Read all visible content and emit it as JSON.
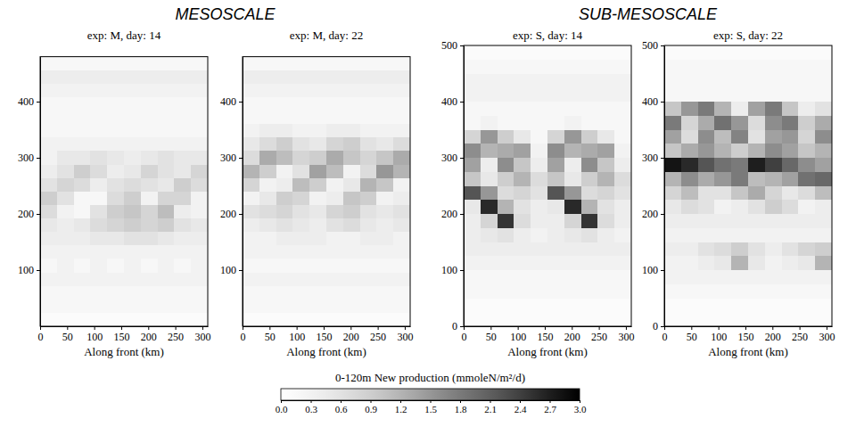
{
  "group_titles": [
    "MESOSCALE",
    "SUB-MESOSCALE"
  ],
  "colorbar": {
    "title": "0-120m New production (mmoleN/m²/d)",
    "range": [
      0,
      3
    ],
    "ticks": [
      {
        "value": 0,
        "label": "0.0"
      },
      0.3,
      0.6,
      0.9,
      1.2,
      1.5,
      1.8,
      2.1,
      2.4,
      2.7,
      {
        "value": 3,
        "label": "3.0"
      }
    ]
  },
  "chart_data": [
    {
      "type": "heatmap",
      "title": "exp: M, day: 14",
      "x_label": "Along front (km)",
      "xlim": [
        0,
        310
      ],
      "xticks": [
        0,
        50,
        100,
        150,
        200,
        250,
        300
      ],
      "ylim": [
        0,
        480
      ],
      "yticks": [
        100,
        200,
        300,
        400
      ],
      "x_bins": [
        0,
        31,
        62,
        93,
        124,
        155,
        186,
        217,
        248,
        279,
        310
      ],
      "y_bins": [
        0,
        24,
        48,
        72,
        96,
        120,
        144,
        168,
        192,
        216,
        240,
        264,
        288,
        312,
        336,
        360,
        384,
        408,
        432,
        456,
        480
      ],
      "cells": [
        [
          0.1,
          0.1,
          0.1,
          0.1,
          0.1,
          0.1,
          0.1,
          0.1,
          0.1,
          0.1
        ],
        [
          0.2,
          0.2,
          0.2,
          0.2,
          0.2,
          0.2,
          0.2,
          0.2,
          0.2,
          0.2
        ],
        [
          0.2,
          0.2,
          0.2,
          0.2,
          0.2,
          0.2,
          0.2,
          0.2,
          0.2,
          0.2
        ],
        [
          0.3,
          0.3,
          0.3,
          0.3,
          0.3,
          0.3,
          0.3,
          0.3,
          0.3,
          0.3
        ],
        [
          0.2,
          0.3,
          0.2,
          0.3,
          0.2,
          0.3,
          0.2,
          0.3,
          0.2,
          0.3
        ],
        [
          0.3,
          0.3,
          0.3,
          0.3,
          0.3,
          0.3,
          0.3,
          0.3,
          0.3,
          0.3
        ],
        [
          0.4,
          0.4,
          0.4,
          0.5,
          0.5,
          0.6,
          0.6,
          0.5,
          0.4,
          0.4
        ],
        [
          0.5,
          0.4,
          0.5,
          0.7,
          0.8,
          0.9,
          0.8,
          0.9,
          0.6,
          0.5
        ],
        [
          0.7,
          0.3,
          0.2,
          0.6,
          0.9,
          1.0,
          0.8,
          1.1,
          0.4,
          0.3
        ],
        [
          0.9,
          0.6,
          0.2,
          0.2,
          0.7,
          0.9,
          0.3,
          0.8,
          0.8,
          0.3
        ],
        [
          0.6,
          0.8,
          0.7,
          0.4,
          0.6,
          0.7,
          0.6,
          0.5,
          0.9,
          0.7
        ],
        [
          0.4,
          0.6,
          0.9,
          0.7,
          0.4,
          0.5,
          0.8,
          0.6,
          0.5,
          0.8
        ],
        [
          0.3,
          0.5,
          0.5,
          0.6,
          0.5,
          0.4,
          0.5,
          0.6,
          0.5,
          0.5
        ],
        [
          0.3,
          0.3,
          0.3,
          0.3,
          0.3,
          0.3,
          0.3,
          0.3,
          0.3,
          0.3
        ],
        [
          0.2,
          0.2,
          0.2,
          0.2,
          0.2,
          0.2,
          0.2,
          0.2,
          0.2,
          0.2
        ],
        [
          0.2,
          0.2,
          0.2,
          0.2,
          0.2,
          0.2,
          0.2,
          0.2,
          0.2,
          0.2
        ],
        [
          0.2,
          0.2,
          0.2,
          0.2,
          0.2,
          0.2,
          0.2,
          0.2,
          0.2,
          0.2
        ],
        [
          0.3,
          0.3,
          0.3,
          0.3,
          0.3,
          0.3,
          0.3,
          0.3,
          0.3,
          0.3
        ],
        [
          0.4,
          0.4,
          0.4,
          0.4,
          0.4,
          0.4,
          0.4,
          0.4,
          0.4,
          0.4
        ],
        [
          0.2,
          0.2,
          0.2,
          0.2,
          0.2,
          0.2,
          0.2,
          0.2,
          0.2,
          0.2
        ]
      ]
    },
    {
      "type": "heatmap",
      "title": "exp: M, day: 22",
      "x_label": "Along front (km)",
      "xlim": [
        0,
        310
      ],
      "xticks": [
        0,
        50,
        100,
        150,
        200,
        250,
        300
      ],
      "ylim": [
        0,
        480
      ],
      "yticks": [
        100,
        200,
        300,
        400
      ],
      "x_bins": [
        0,
        31,
        62,
        93,
        124,
        155,
        186,
        217,
        248,
        279,
        310
      ],
      "y_bins": [
        0,
        24,
        48,
        72,
        96,
        120,
        144,
        168,
        192,
        216,
        240,
        264,
        288,
        312,
        336,
        360,
        384,
        408,
        432,
        456,
        480
      ],
      "cells": [
        [
          0.1,
          0.1,
          0.1,
          0.1,
          0.1,
          0.1,
          0.1,
          0.1,
          0.1,
          0.1
        ],
        [
          0.2,
          0.2,
          0.2,
          0.2,
          0.2,
          0.2,
          0.2,
          0.2,
          0.2,
          0.2
        ],
        [
          0.2,
          0.2,
          0.2,
          0.2,
          0.2,
          0.2,
          0.2,
          0.2,
          0.2,
          0.2
        ],
        [
          0.3,
          0.3,
          0.3,
          0.3,
          0.3,
          0.3,
          0.3,
          0.3,
          0.3,
          0.3
        ],
        [
          0.2,
          0.2,
          0.2,
          0.2,
          0.2,
          0.2,
          0.2,
          0.2,
          0.2,
          0.2
        ],
        [
          0.3,
          0.3,
          0.3,
          0.3,
          0.3,
          0.3,
          0.3,
          0.3,
          0.3,
          0.3
        ],
        [
          0.3,
          0.3,
          0.4,
          0.4,
          0.4,
          0.3,
          0.3,
          0.4,
          0.4,
          0.3
        ],
        [
          0.4,
          0.5,
          0.6,
          0.5,
          0.4,
          0.6,
          0.7,
          0.5,
          0.4,
          0.5
        ],
        [
          0.6,
          0.7,
          0.8,
          0.6,
          0.5,
          0.8,
          0.9,
          0.6,
          0.5,
          0.6
        ],
        [
          0.3,
          0.5,
          0.9,
          0.8,
          0.3,
          0.4,
          1.0,
          0.9,
          0.3,
          0.4
        ],
        [
          0.8,
          0.3,
          0.4,
          1.1,
          0.9,
          0.3,
          0.5,
          1.2,
          1.0,
          0.3
        ],
        [
          1.2,
          0.9,
          0.3,
          0.6,
          1.4,
          1.1,
          0.3,
          0.7,
          1.5,
          1.2
        ],
        [
          0.7,
          1.3,
          1.1,
          0.8,
          0.9,
          1.3,
          1.0,
          0.8,
          1.0,
          1.3
        ],
        [
          0.5,
          0.7,
          0.9,
          0.6,
          0.5,
          0.8,
          0.9,
          0.6,
          0.5,
          0.7
        ],
        [
          0.3,
          0.4,
          0.4,
          0.3,
          0.3,
          0.4,
          0.4,
          0.3,
          0.3,
          0.3
        ],
        [
          0.2,
          0.2,
          0.2,
          0.2,
          0.2,
          0.2,
          0.2,
          0.2,
          0.2,
          0.2
        ],
        [
          0.2,
          0.2,
          0.2,
          0.2,
          0.2,
          0.2,
          0.2,
          0.2,
          0.2,
          0.2
        ],
        [
          0.3,
          0.3,
          0.3,
          0.3,
          0.3,
          0.3,
          0.3,
          0.3,
          0.3,
          0.3
        ],
        [
          0.4,
          0.4,
          0.4,
          0.4,
          0.4,
          0.4,
          0.4,
          0.4,
          0.4,
          0.4
        ],
        [
          0.2,
          0.2,
          0.2,
          0.2,
          0.2,
          0.2,
          0.2,
          0.2,
          0.2,
          0.2
        ]
      ]
    },
    {
      "type": "heatmap",
      "title": "exp: S, day: 14",
      "x_label": "Along front (km)",
      "xlim": [
        0,
        310
      ],
      "xticks": [
        0,
        50,
        100,
        150,
        200,
        250,
        300
      ],
      "ylim": [
        0,
        500
      ],
      "yticks": [
        0,
        100,
        200,
        300,
        400,
        500
      ],
      "x_bins": [
        0,
        31,
        62,
        93,
        124,
        155,
        186,
        217,
        248,
        279,
        310
      ],
      "y_bins": [
        0,
        25,
        50,
        75,
        100,
        125,
        150,
        175,
        200,
        225,
        250,
        275,
        300,
        325,
        350,
        375,
        400,
        425,
        450,
        475,
        500
      ],
      "cells": [
        [
          0.1,
          0.1,
          0.1,
          0.1,
          0.1,
          0.1,
          0.1,
          0.1,
          0.1,
          0.1
        ],
        [
          0.1,
          0.1,
          0.1,
          0.1,
          0.1,
          0.1,
          0.1,
          0.1,
          0.1,
          0.1
        ],
        [
          0.2,
          0.2,
          0.2,
          0.2,
          0.2,
          0.2,
          0.2,
          0.2,
          0.2,
          0.2
        ],
        [
          0.2,
          0.2,
          0.2,
          0.2,
          0.2,
          0.2,
          0.2,
          0.2,
          0.2,
          0.2
        ],
        [
          0.3,
          0.3,
          0.3,
          0.3,
          0.3,
          0.3,
          0.3,
          0.3,
          0.3,
          0.3
        ],
        [
          0.4,
          0.4,
          0.4,
          0.4,
          0.4,
          0.4,
          0.4,
          0.4,
          0.4,
          0.4
        ],
        [
          0.4,
          0.5,
          0.6,
          0.4,
          0.3,
          0.4,
          0.5,
          0.6,
          0.4,
          0.3
        ],
        [
          0.4,
          0.8,
          2.5,
          0.7,
          0.4,
          0.4,
          0.8,
          2.5,
          0.7,
          0.4
        ],
        [
          0.5,
          2.6,
          1.2,
          0.6,
          0.4,
          0.5,
          2.6,
          1.2,
          0.6,
          0.4
        ],
        [
          2.2,
          1.5,
          0.7,
          0.8,
          0.6,
          2.2,
          1.5,
          0.7,
          0.8,
          0.6
        ],
        [
          1.0,
          0.5,
          0.9,
          1.2,
          0.7,
          1.0,
          0.5,
          0.9,
          1.2,
          0.7
        ],
        [
          1.4,
          0.4,
          1.6,
          1.0,
          0.4,
          1.4,
          0.4,
          1.6,
          1.0,
          0.4
        ],
        [
          1.6,
          1.2,
          1.3,
          1.4,
          0.3,
          1.6,
          1.2,
          1.3,
          1.4,
          0.3
        ],
        [
          0.8,
          1.5,
          0.9,
          0.5,
          0.2,
          0.8,
          1.5,
          0.9,
          0.5,
          0.2
        ],
        [
          0.2,
          0.3,
          0.2,
          0.2,
          0.2,
          0.2,
          0.3,
          0.2,
          0.2,
          0.2
        ],
        [
          0.2,
          0.2,
          0.2,
          0.2,
          0.2,
          0.2,
          0.2,
          0.2,
          0.2,
          0.2
        ],
        [
          0.3,
          0.3,
          0.3,
          0.3,
          0.3,
          0.3,
          0.3,
          0.3,
          0.3,
          0.3
        ],
        [
          0.3,
          0.3,
          0.3,
          0.3,
          0.3,
          0.3,
          0.3,
          0.3,
          0.3,
          0.3
        ],
        [
          0.2,
          0.2,
          0.2,
          0.2,
          0.2,
          0.2,
          0.2,
          0.2,
          0.2,
          0.2
        ],
        [
          0.1,
          0.1,
          0.1,
          0.1,
          0.1,
          0.1,
          0.1,
          0.1,
          0.1,
          0.1
        ]
      ]
    },
    {
      "type": "heatmap",
      "title": "exp: S, day: 22",
      "x_label": "Along front (km)",
      "xlim": [
        0,
        310
      ],
      "xticks": [
        0,
        50,
        100,
        150,
        200,
        250,
        300
      ],
      "ylim": [
        0,
        500
      ],
      "yticks": [
        0,
        100,
        200,
        300,
        400,
        500
      ],
      "x_bins": [
        0,
        31,
        62,
        93,
        124,
        155,
        186,
        217,
        248,
        279,
        310
      ],
      "y_bins": [
        0,
        25,
        50,
        75,
        100,
        125,
        150,
        175,
        200,
        225,
        250,
        275,
        300,
        325,
        350,
        375,
        400,
        425,
        450,
        475,
        500
      ],
      "cells": [
        [
          0.1,
          0.1,
          0.1,
          0.1,
          0.1,
          0.1,
          0.1,
          0.1,
          0.1,
          0.1
        ],
        [
          0.1,
          0.1,
          0.1,
          0.1,
          0.1,
          0.1,
          0.1,
          0.1,
          0.1,
          0.1
        ],
        [
          0.2,
          0.2,
          0.2,
          0.2,
          0.2,
          0.2,
          0.2,
          0.2,
          0.2,
          0.2
        ],
        [
          0.3,
          0.3,
          0.3,
          0.3,
          0.3,
          0.3,
          0.3,
          0.3,
          0.3,
          0.3
        ],
        [
          0.3,
          0.3,
          0.4,
          0.5,
          1.2,
          0.5,
          0.3,
          0.4,
          0.5,
          1.2
        ],
        [
          0.4,
          0.4,
          0.6,
          0.7,
          0.9,
          0.6,
          0.4,
          0.6,
          0.8,
          0.9
        ],
        [
          0.3,
          0.3,
          0.3,
          0.3,
          0.3,
          0.3,
          0.3,
          0.3,
          0.3,
          0.3
        ],
        [
          0.4,
          0.4,
          0.4,
          0.4,
          0.4,
          0.4,
          0.4,
          0.4,
          0.4,
          0.4
        ],
        [
          0.5,
          0.7,
          0.6,
          0.3,
          0.4,
          0.6,
          0.9,
          0.7,
          0.3,
          0.4
        ],
        [
          0.8,
          1.1,
          0.6,
          0.6,
          1.0,
          1.3,
          0.8,
          0.5,
          0.7,
          1.1
        ],
        [
          1.2,
          1.6,
          1.3,
          1.5,
          1.8,
          1.1,
          1.2,
          1.4,
          1.9,
          2.0
        ],
        [
          2.8,
          2.6,
          2.2,
          1.9,
          1.8,
          2.7,
          2.4,
          2.0,
          1.6,
          1.4
        ],
        [
          1.0,
          1.3,
          1.5,
          1.2,
          0.9,
          1.2,
          1.6,
          1.4,
          1.0,
          1.2
        ],
        [
          1.4,
          0.7,
          1.6,
          1.1,
          1.7,
          0.6,
          1.4,
          1.5,
          0.8,
          1.6
        ],
        [
          1.8,
          0.8,
          1.3,
          1.9,
          1.5,
          0.7,
          1.6,
          1.8,
          0.9,
          1.3
        ],
        [
          1.0,
          1.5,
          1.8,
          1.2,
          0.4,
          1.4,
          1.8,
          1.0,
          0.4,
          0.6
        ],
        [
          0.2,
          0.2,
          0.2,
          0.2,
          0.2,
          0.2,
          0.2,
          0.2,
          0.2,
          0.2
        ],
        [
          0.2,
          0.2,
          0.2,
          0.2,
          0.2,
          0.2,
          0.2,
          0.2,
          0.2,
          0.2
        ],
        [
          0.2,
          0.2,
          0.2,
          0.2,
          0.2,
          0.2,
          0.2,
          0.2,
          0.2,
          0.2
        ],
        [
          0.1,
          0.1,
          0.1,
          0.1,
          0.1,
          0.1,
          0.1,
          0.1,
          0.1,
          0.1
        ]
      ]
    }
  ]
}
